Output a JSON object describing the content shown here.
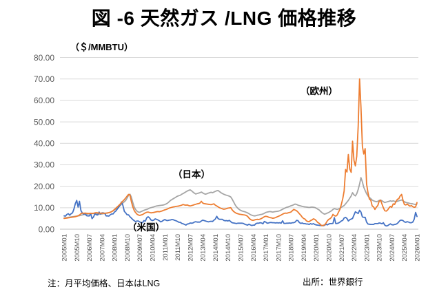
{
  "title": "図 -6 天然ガス /LNG 価格推移",
  "unit_label": "（＄/MMBTU）",
  "notes": {
    "left": "注：月平均価格、日本はLNG",
    "right": "出所：世界銀行"
  },
  "chart_data": {
    "type": "line",
    "x_start": "2005M01",
    "x_end": "2026M01",
    "x_freq": "monthly",
    "x_tick_labels": [
      "2005M01",
      "2005M10",
      "2006M07",
      "2007M04",
      "2008M01",
      "2008M10",
      "2009M07",
      "2010M04",
      "2011M01",
      "2011M10",
      "2012M07",
      "2013M04",
      "2014M01",
      "2014M10",
      "2015M07",
      "2016M04",
      "2017M01",
      "2017M10",
      "2018M07",
      "2019M04",
      "2020M01",
      "2020M10",
      "2021M07",
      "2022M04",
      "2023M01",
      "2023M10",
      "2024M07",
      "2025M04",
      "2026M01"
    ],
    "ylim": [
      0,
      80
    ],
    "ytick_step": 10,
    "y_tick_labels": [
      "0.00",
      "10.00",
      "20.00",
      "30.00",
      "40.00",
      "50.00",
      "60.00",
      "70.00",
      "80.00"
    ],
    "grid": "horizontal",
    "legend_position": "none",
    "colors": {
      "us": "#4472C4",
      "europe": "#ED7D31",
      "japan": "#A5A5A5",
      "gridline": "#D9D9D9",
      "axis": "#BFBFBF",
      "tick_text": "#595959"
    },
    "series": [
      {
        "key": "japan",
        "name": "日本",
        "annotation": "（日本）",
        "color": "#A5A5A5",
        "values": [
          5.2,
          5.3,
          5.4,
          5.5,
          5.6,
          5.7,
          5.8,
          5.9,
          6.0,
          6.1,
          6.2,
          6.3,
          6.5,
          6.6,
          6.8,
          6.9,
          7.0,
          7.1,
          7.2,
          7.2,
          7.3,
          7.3,
          7.2,
          7.1,
          7.1,
          7.0,
          7.0,
          7.1,
          7.2,
          7.3,
          7.4,
          7.5,
          7.7,
          7.9,
          8.2,
          8.6,
          9.0,
          9.4,
          9.9,
          10.4,
          11.0,
          11.6,
          12.2,
          12.8,
          13.4,
          14.5,
          15.8,
          16.3,
          15.0,
          12.5,
          10.5,
          9.2,
          8.4,
          8.0,
          7.9,
          8.2,
          8.5,
          8.8,
          9.0,
          9.2,
          9.5,
          9.8,
          10.0,
          10.2,
          10.4,
          10.6,
          10.8,
          10.9,
          11.0,
          11.1,
          11.2,
          11.3,
          11.5,
          11.8,
          12.2,
          12.8,
          13.4,
          13.8,
          14.2,
          14.6,
          15.0,
          15.4,
          15.6,
          15.8,
          16.3,
          16.6,
          17.0,
          17.4,
          17.8,
          18.1,
          18.3,
          17.9,
          17.3,
          16.8,
          16.4,
          16.6,
          16.8,
          17.0,
          17.3,
          16.9,
          16.5,
          16.3,
          16.5,
          16.8,
          17.0,
          17.2,
          17.0,
          17.3,
          17.6,
          17.9,
          18.0,
          17.5,
          17.0,
          16.6,
          16.3,
          16.0,
          15.8,
          15.6,
          15.4,
          15.0,
          14.0,
          12.8,
          11.5,
          10.5,
          9.8,
          9.2,
          8.8,
          8.5,
          8.3,
          8.1,
          7.9,
          7.6,
          7.2,
          6.8,
          6.5,
          6.3,
          6.2,
          6.3,
          6.5,
          6.6,
          6.8,
          6.9,
          7.1,
          7.4,
          7.8,
          8.0,
          8.1,
          8.2,
          8.1,
          8.0,
          8.1,
          8.2,
          8.3,
          8.4,
          8.6,
          8.9,
          9.3,
          9.6,
          9.9,
          10.2,
          10.4,
          10.6,
          10.9,
          11.1,
          11.4,
          11.7,
          11.5,
          11.2,
          11.0,
          10.8,
          10.6,
          10.5,
          10.4,
          10.3,
          10.2,
          10.1,
          10.2,
          10.3,
          10.2,
          10.1,
          9.8,
          9.4,
          9.0,
          8.4,
          7.8,
          7.3,
          7.0,
          7.2,
          7.5,
          7.8,
          8.2,
          8.6,
          9.2,
          9.6,
          9.4,
          9.2,
          9.4,
          9.8,
          10.2,
          10.6,
          11.0,
          11.8,
          12.6,
          13.4,
          14.5,
          15.5,
          17.0,
          16.0,
          15.5,
          16.5,
          18.5,
          21.0,
          24.0,
          22.0,
          19.5,
          18.0,
          16.5,
          15.5,
          14.8,
          14.2,
          13.6,
          13.2,
          13.0,
          12.8,
          13.0,
          13.4,
          13.6,
          13.2,
          12.8,
          12.4,
          12.6,
          12.8,
          13.0,
          13.2,
          13.0,
          13.2,
          13.0,
          12.8,
          13.0,
          13.2,
          13.4,
          13.6,
          13.2,
          12.8,
          12.5,
          12.3,
          12.2,
          12.0,
          11.9,
          11.8,
          11.6,
          11.5,
          11.8
        ]
      },
      {
        "key": "us",
        "name": "米国",
        "annotation": "（米国）",
        "color": "#4472C4",
        "values": [
          6.2,
          6.1,
          6.9,
          7.2,
          6.5,
          7.2,
          7.6,
          9.3,
          11.9,
          13.4,
          10.3,
          13.0,
          8.7,
          7.6,
          7.0,
          7.2,
          6.3,
          6.2,
          6.2,
          7.2,
          4.9,
          5.7,
          7.2,
          6.7,
          6.6,
          8.0,
          7.1,
          7.6,
          7.6,
          7.4,
          6.2,
          6.2,
          6.1,
          6.7,
          7.1,
          7.1,
          8.0,
          8.5,
          9.4,
          10.2,
          11.3,
          12.7,
          11.1,
          8.3,
          7.6,
          6.7,
          6.7,
          5.8,
          5.2,
          4.5,
          4.0,
          3.5,
          3.8,
          3.8,
          3.4,
          3.1,
          3.0,
          4.0,
          3.7,
          5.3,
          5.8,
          5.3,
          4.3,
          4.0,
          4.2,
          4.8,
          4.6,
          4.3,
          3.9,
          3.4,
          3.7,
          4.2,
          4.5,
          4.1,
          4.0,
          4.2,
          4.3,
          4.5,
          4.4,
          4.1,
          3.9,
          3.6,
          3.2,
          3.2,
          2.7,
          2.5,
          2.2,
          1.9,
          2.4,
          2.5,
          2.9,
          2.8,
          2.9,
          3.3,
          3.5,
          3.3,
          3.3,
          3.3,
          3.8,
          4.2,
          4.0,
          3.8,
          3.6,
          3.4,
          3.6,
          3.7,
          3.6,
          4.2,
          4.7,
          6.0,
          4.9,
          4.6,
          4.6,
          4.6,
          4.1,
          3.9,
          4.0,
          3.8,
          4.1,
          3.5,
          3.0,
          2.9,
          2.8,
          2.6,
          2.8,
          2.8,
          2.8,
          2.8,
          2.7,
          2.3,
          2.1,
          1.9,
          2.3,
          2.0,
          1.7,
          1.9,
          1.9,
          2.6,
          2.8,
          2.8,
          3.0,
          2.9,
          2.5,
          3.6,
          3.3,
          2.8,
          2.9,
          3.1,
          3.1,
          3.0,
          3.0,
          2.9,
          3.0,
          2.9,
          3.0,
          2.8,
          3.9,
          2.7,
          2.7,
          2.8,
          2.8,
          2.9,
          2.8,
          3.0,
          3.0,
          3.3,
          4.1,
          4.0,
          3.1,
          2.7,
          2.9,
          2.6,
          2.6,
          2.4,
          2.4,
          2.2,
          2.6,
          2.3,
          2.6,
          2.2,
          2.0,
          1.9,
          1.8,
          1.7,
          1.7,
          1.6,
          1.8,
          2.3,
          2.0,
          2.4,
          2.6,
          2.6,
          2.7,
          5.4,
          2.6,
          2.7,
          2.9,
          3.3,
          3.8,
          4.1,
          5.2,
          5.5,
          5.0,
          3.8,
          4.4,
          4.7,
          5.0,
          6.6,
          8.1,
          7.7,
          7.3,
          8.8,
          8.0,
          5.7,
          5.5,
          5.5,
          3.3,
          2.4,
          2.3,
          2.2,
          2.2,
          2.2,
          2.6,
          2.6,
          2.6,
          2.9,
          2.8,
          2.5,
          3.0,
          1.9,
          1.5,
          1.6,
          2.1,
          2.5,
          2.1,
          2.0,
          2.2,
          2.3,
          2.7,
          3.4,
          4.1,
          4.2,
          4.0,
          3.4,
          3.2,
          3.5,
          3.3,
          3.0,
          3.0,
          3.3,
          4.6,
          7.8,
          5.9
        ]
      },
      {
        "key": "europe",
        "name": "欧州",
        "annotation": "（欧州）",
        "color": "#ED7D31",
        "values": [
          5.0,
          5.1,
          5.2,
          5.3,
          5.4,
          5.5,
          5.6,
          5.7,
          5.8,
          6.0,
          6.3,
          6.6,
          7.2,
          7.5,
          7.4,
          7.5,
          7.4,
          7.3,
          7.3,
          7.4,
          7.3,
          7.4,
          7.6,
          7.7,
          7.6,
          7.5,
          7.4,
          7.5,
          7.4,
          7.4,
          7.5,
          7.6,
          7.7,
          7.9,
          8.2,
          8.6,
          9.2,
          9.8,
          10.4,
          11.0,
          11.7,
          12.4,
          13.1,
          13.8,
          14.6,
          15.4,
          16.2,
          16.0,
          13.0,
          10.5,
          8.8,
          7.8,
          7.0,
          6.6,
          6.4,
          6.6,
          6.8,
          7.2,
          7.6,
          7.9,
          8.0,
          7.8,
          7.6,
          7.7,
          7.8,
          8.0,
          8.1,
          8.2,
          8.1,
          8.3,
          8.5,
          8.8,
          9.0,
          9.2,
          9.5,
          9.8,
          10.0,
          10.2,
          10.4,
          10.5,
          10.6,
          10.7,
          10.8,
          11.0,
          11.2,
          11.5,
          11.3,
          11.2,
          11.3,
          11.0,
          10.8,
          11.0,
          11.2,
          11.4,
          11.6,
          11.8,
          11.9,
          12.2,
          13.0,
          12.2,
          11.9,
          11.8,
          11.7,
          11.6,
          11.5,
          11.4,
          11.6,
          11.8,
          11.2,
          10.8,
          10.4,
          10.0,
          9.7,
          9.5,
          9.3,
          9.4,
          9.6,
          9.8,
          9.9,
          10.0,
          9.0,
          8.3,
          7.8,
          7.4,
          7.2,
          7.0,
          6.9,
          6.8,
          6.7,
          6.6,
          6.4,
          6.0,
          5.2,
          4.6,
          4.2,
          4.1,
          4.3,
          4.5,
          4.6,
          4.5,
          4.7,
          5.0,
          5.4,
          5.8,
          6.0,
          5.9,
          5.6,
          5.4,
          5.3,
          5.1,
          5.2,
          5.4,
          5.7,
          6.0,
          6.3,
          6.6,
          7.0,
          7.3,
          7.5,
          7.4,
          7.6,
          7.8,
          8.0,
          8.6,
          9.2,
          8.9,
          8.6,
          8.0,
          7.2,
          6.5,
          5.6,
          5.0,
          4.7,
          3.9,
          3.6,
          3.5,
          4.0,
          4.3,
          4.8,
          4.6,
          4.0,
          3.2,
          2.8,
          2.2,
          1.6,
          1.8,
          2.0,
          2.8,
          3.9,
          4.6,
          4.9,
          5.6,
          6.9,
          6.3,
          6.1,
          6.6,
          8.0,
          9.3,
          11.6,
          14.2,
          17.8,
          27.8,
          26.6,
          34.8,
          28.0,
          26.5,
          41.0,
          32.0,
          29.5,
          34.0,
          48.0,
          70.0,
          57.0,
          38.5,
          35.0,
          37.5,
          21.0,
          17.0,
          14.0,
          13.5,
          10.8,
          10.4,
          9.2,
          10.3,
          11.0,
          13.0,
          13.5,
          11.7,
          10.0,
          8.6,
          8.4,
          8.9,
          9.9,
          10.6,
          10.2,
          11.8,
          11.5,
          12.9,
          13.9,
          14.2,
          15.5,
          16.2,
          13.5,
          11.5,
          11.3,
          11.7,
          11.2,
          10.7,
          11.0,
          10.5,
          10.2,
          10.4,
          12.4
        ]
      }
    ]
  }
}
